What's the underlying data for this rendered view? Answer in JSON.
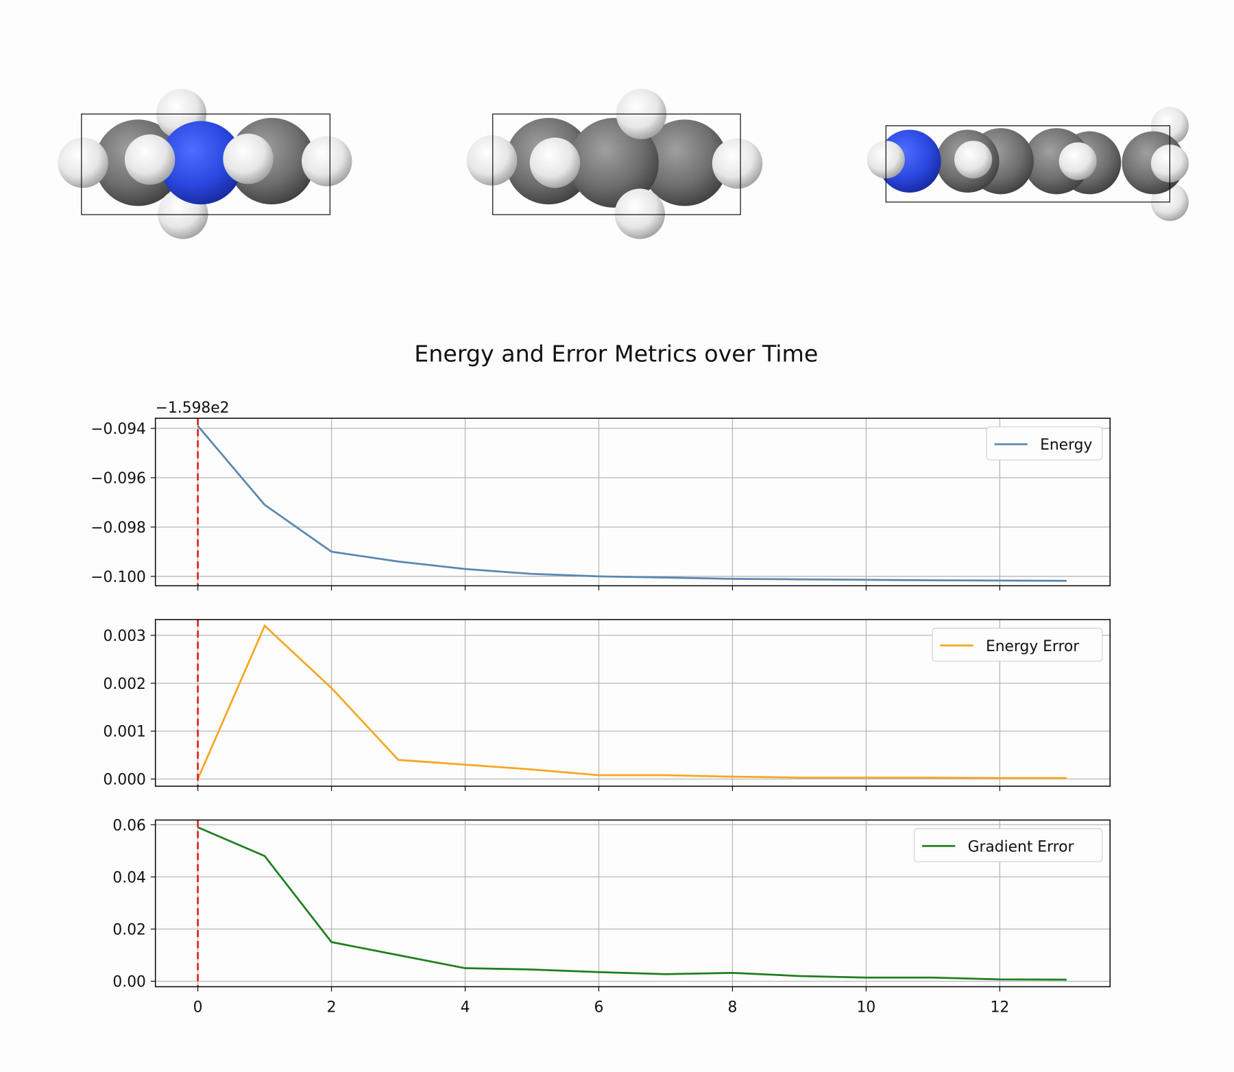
{
  "title": "Energy and Error Metrics over Time",
  "chart_data": [
    {
      "type": "line",
      "y_offset_label": "−1.598e2",
      "x": [
        0,
        1,
        2,
        3,
        4,
        5,
        6,
        7,
        8,
        9,
        10,
        11,
        12,
        13
      ],
      "series": [
        {
          "name": "Energy",
          "color": "#5a87b0",
          "values": [
            -0.0939,
            -0.0971,
            -0.099,
            -0.0994,
            -0.0997,
            -0.0999,
            -0.1,
            -0.10005,
            -0.1001,
            -0.10012,
            -0.10014,
            -0.10016,
            -0.10017,
            -0.10018
          ]
        }
      ],
      "xlim": [
        -0.635,
        13.65
      ],
      "xticks": [
        0,
        2,
        4,
        6,
        8,
        10,
        12
      ],
      "show_xtick_labels": false,
      "ylim": [
        -0.10038,
        -0.09359
      ],
      "yticks": [
        {
          "value": -0.1,
          "label": "−0.100"
        },
        {
          "value": -0.098,
          "label": "−0.098"
        },
        {
          "value": -0.096,
          "label": "−0.096"
        },
        {
          "value": -0.094,
          "label": "−0.094"
        }
      ],
      "grid": true,
      "legend": "upper right",
      "vline": 0,
      "vline_color": "#e0261e"
    },
    {
      "type": "line",
      "x": [
        0,
        1,
        2,
        3,
        4,
        5,
        6,
        7,
        8,
        9,
        10,
        11,
        12,
        13
      ],
      "series": [
        {
          "name": "Energy Error",
          "color": "#f5a623",
          "values": [
            0,
            0.0032,
            0.0019,
            0.0004,
            0.0003,
            0.0002,
            8e-05,
            8e-05,
            5e-05,
            3e-05,
            3e-05,
            3e-05,
            2e-05,
            2e-05
          ]
        }
      ],
      "xlim": [
        -0.635,
        13.65
      ],
      "xticks": [
        0,
        2,
        4,
        6,
        8,
        10,
        12
      ],
      "show_xtick_labels": false,
      "ylim": [
        -0.00015,
        0.00333
      ],
      "yticks": [
        {
          "value": 0,
          "label": "0.000"
        },
        0.001,
        0.002,
        0.003
      ],
      "grid": true,
      "legend": "upper right",
      "vline": 0,
      "vline_color": "#e0261e"
    },
    {
      "type": "line",
      "x": [
        0,
        1,
        2,
        3,
        4,
        5,
        6,
        7,
        8,
        9,
        10,
        11,
        12,
        13
      ],
      "series": [
        {
          "name": "Gradient Error",
          "color": "#1e7e1e",
          "values": [
            0.059,
            0.048,
            0.015,
            0.01,
            0.005,
            0.0045,
            0.0035,
            0.0027,
            0.0032,
            0.002,
            0.0014,
            0.0014,
            0.0007,
            0.0006
          ]
        }
      ],
      "xlim": [
        -0.635,
        13.65
      ],
      "xticks": [
        0,
        2,
        4,
        6,
        8,
        10,
        12
      ],
      "show_xtick_labels": true,
      "ylim": [
        -0.0021,
        0.0618
      ],
      "yticks": [
        {
          "value": 0,
          "label": "0.00"
        },
        0.02,
        0.04,
        0.06
      ],
      "grid": true,
      "legend": "upper right",
      "vline": 0,
      "vline_color": "#e0261e"
    }
  ]
}
